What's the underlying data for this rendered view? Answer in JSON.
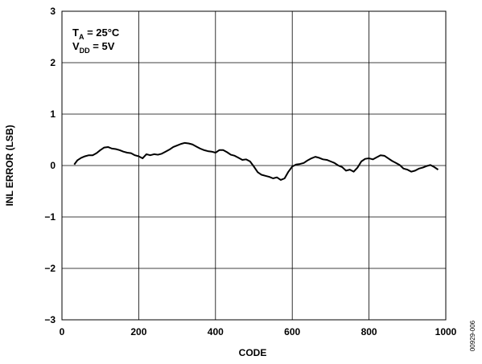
{
  "chart_data": {
    "type": "line",
    "xlabel": "CODE",
    "ylabel": "INL ERROR (LSB)",
    "xlim": [
      0,
      1000
    ],
    "ylim": [
      -3,
      3
    ],
    "xticks": [
      0,
      200,
      400,
      600,
      800,
      1000
    ],
    "yticks": [
      -3,
      -2,
      -1,
      0,
      1,
      2,
      3
    ],
    "xtick_labels": [
      "0",
      "200",
      "400",
      "600",
      "800",
      "1000"
    ],
    "ytick_labels": [
      "−3",
      "−2",
      "−1",
      "0",
      "1",
      "2",
      "3"
    ],
    "grid": true,
    "annotation": {
      "line1_main": "T",
      "line1_sub": "A",
      "line1_rest": " = 25°C",
      "line2_main": "V",
      "line2_sub": "DD",
      "line2_rest": " = 5V"
    },
    "figure_id": "00929-006",
    "series": [
      {
        "color": "#000000",
        "x": [
          32,
          40,
          50,
          60,
          70,
          80,
          90,
          100,
          110,
          120,
          130,
          140,
          150,
          160,
          170,
          180,
          190,
          200,
          210,
          220,
          230,
          240,
          250,
          260,
          270,
          280,
          290,
          300,
          310,
          320,
          330,
          340,
          350,
          360,
          370,
          380,
          390,
          400,
          410,
          420,
          430,
          440,
          450,
          460,
          470,
          480,
          490,
          500,
          510,
          520,
          530,
          540,
          550,
          560,
          570,
          580,
          590,
          600,
          610,
          620,
          630,
          640,
          650,
          660,
          670,
          680,
          690,
          700,
          710,
          720,
          730,
          740,
          750,
          760,
          770,
          780,
          790,
          800,
          810,
          820,
          830,
          840,
          850,
          860,
          870,
          880,
          890,
          900,
          910,
          920,
          930,
          940,
          950,
          960,
          970,
          980
        ],
        "y": [
          0.02,
          0.1,
          0.15,
          0.18,
          0.2,
          0.2,
          0.24,
          0.3,
          0.35,
          0.36,
          0.33,
          0.32,
          0.3,
          0.27,
          0.25,
          0.24,
          0.2,
          0.18,
          0.14,
          0.22,
          0.2,
          0.22,
          0.21,
          0.23,
          0.27,
          0.31,
          0.36,
          0.39,
          0.42,
          0.44,
          0.43,
          0.41,
          0.37,
          0.33,
          0.3,
          0.28,
          0.27,
          0.25,
          0.3,
          0.3,
          0.26,
          0.21,
          0.19,
          0.15,
          0.11,
          0.12,
          0.08,
          -0.02,
          -0.13,
          -0.18,
          -0.2,
          -0.22,
          -0.25,
          -0.23,
          -0.28,
          -0.25,
          -0.12,
          -0.02,
          0.02,
          0.03,
          0.05,
          0.1,
          0.14,
          0.17,
          0.15,
          0.12,
          0.11,
          0.08,
          0.05,
          0.0,
          -0.03,
          -0.1,
          -0.08,
          -0.12,
          -0.04,
          0.08,
          0.13,
          0.14,
          0.12,
          0.16,
          0.2,
          0.19,
          0.14,
          0.09,
          0.05,
          0.01,
          -0.06,
          -0.08,
          -0.12,
          -0.1,
          -0.06,
          -0.04,
          -0.01,
          0.01,
          -0.03,
          -0.08
        ]
      }
    ]
  }
}
